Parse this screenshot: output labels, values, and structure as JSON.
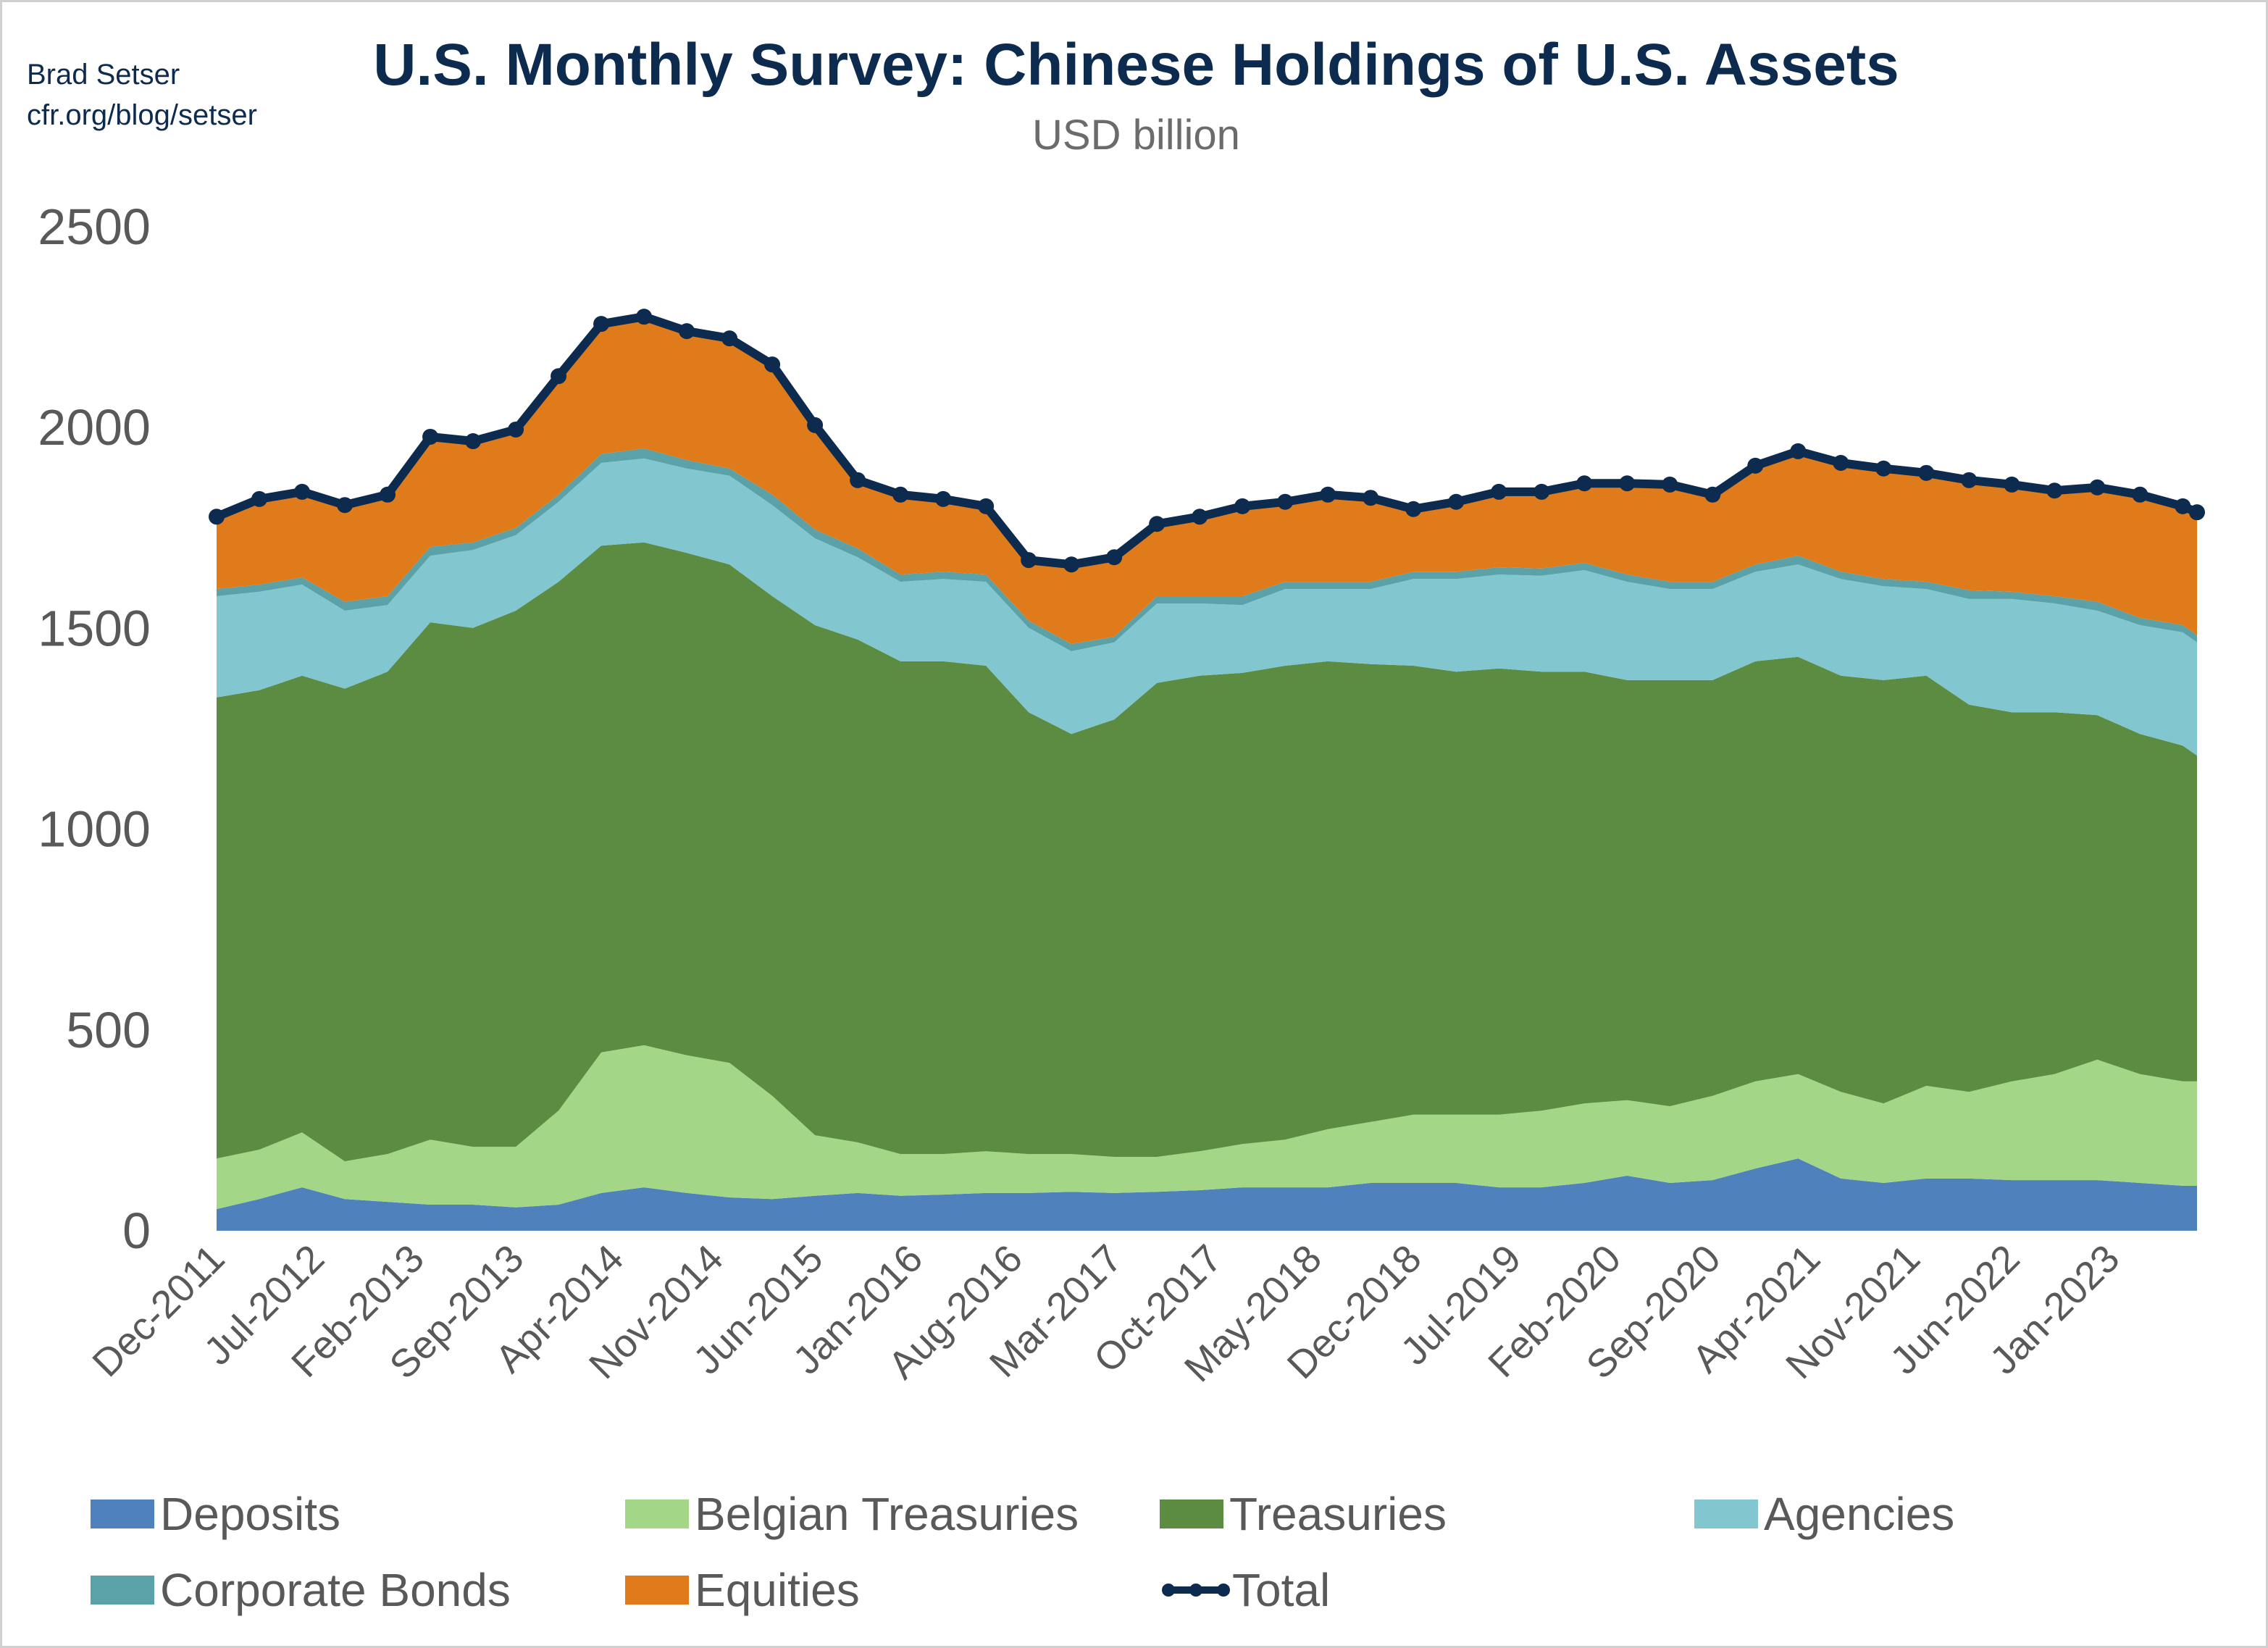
{
  "author": {
    "name": "Brad Setser",
    "site": "cfr.org/blog/setser"
  },
  "chart_data": {
    "type": "area",
    "stacked": true,
    "title": "U.S. Monthly Survey: Chinese Holdings of U.S. Assets",
    "subtitle": "USD billion",
    "xlabel": "",
    "ylabel": "",
    "ylim": [
      0,
      2500
    ],
    "yticks": [
      0,
      500,
      1000,
      1500,
      2000,
      2500
    ],
    "xtick_labels": [
      "Dec-2011",
      "Jul-2012",
      "Feb-2013",
      "Sep-2013",
      "Apr-2014",
      "Nov-2014",
      "Jun-2015",
      "Jan-2016",
      "Aug-2016",
      "Mar-2017",
      "Oct-2017",
      "May-2018",
      "Dec-2018",
      "Jul-2019",
      "Feb-2020",
      "Sep-2020",
      "Apr-2021",
      "Nov-2021",
      "Jun-2022",
      "Jan-2023"
    ],
    "grid": false,
    "legend_position": "bottom",
    "x": [
      "Dec-2011",
      "Mar-2012",
      "Jun-2012",
      "Sep-2012",
      "Dec-2012",
      "Mar-2013",
      "Jun-2013",
      "Sep-2013",
      "Dec-2013",
      "Mar-2014",
      "Jun-2014",
      "Sep-2014",
      "Dec-2014",
      "Mar-2015",
      "Jun-2015",
      "Sep-2015",
      "Dec-2015",
      "Mar-2016",
      "Jun-2016",
      "Sep-2016",
      "Dec-2016",
      "Mar-2017",
      "Jun-2017",
      "Sep-2017",
      "Dec-2017",
      "Mar-2018",
      "Jun-2018",
      "Sep-2018",
      "Dec-2018",
      "Mar-2019",
      "Jun-2019",
      "Sep-2019",
      "Dec-2019",
      "Mar-2020",
      "Jun-2020",
      "Sep-2020",
      "Dec-2020",
      "Mar-2021",
      "Jun-2021",
      "Sep-2021",
      "Dec-2021",
      "Mar-2022",
      "Jun-2022",
      "Sep-2022",
      "Dec-2022",
      "Mar-2023",
      "Jun-2023",
      "Jul-2023"
    ],
    "series": [
      {
        "name": "Deposits",
        "color": "#4f81bd",
        "values": [
          54,
          79,
          108,
          79,
          72,
          65,
          65,
          58,
          65,
          94,
          108,
          94,
          83,
          79,
          87,
          94,
          87,
          90,
          94,
          94,
          97,
          94,
          97,
          101,
          108,
          108,
          108,
          119,
          119,
          119,
          108,
          108,
          119,
          137,
          119,
          126,
          155,
          180,
          130,
          119,
          130,
          130,
          126,
          126,
          126,
          119,
          112,
          112
        ]
      },
      {
        "name": "Belgian Treasuries",
        "color": "#a3d686",
        "values": [
          126,
          123,
          137,
          94,
          119,
          162,
          144,
          151,
          234,
          350,
          354,
          343,
          335,
          257,
          151,
          126,
          104,
          101,
          104,
          97,
          94,
          90,
          87,
          97,
          108,
          119,
          145,
          152,
          170,
          170,
          181,
          191,
          198,
          188,
          191,
          210,
          217,
          210,
          216,
          198,
          231,
          216,
          246,
          264,
          300,
          271,
          260,
          260
        ]
      },
      {
        "name": "Treasuries",
        "color": "#5b8c42",
        "values": [
          1148,
          1144,
          1137,
          1177,
          1201,
          1288,
          1292,
          1335,
          1317,
          1262,
          1252,
          1251,
          1241,
          1244,
          1270,
          1252,
          1227,
          1227,
          1209,
          1100,
          1046,
          1089,
          1180,
          1184,
          1173,
          1180,
          1165,
          1140,
          1118,
          1103,
          1111,
          1093,
          1075,
          1046,
          1061,
          1035,
          1046,
          1039,
          1036,
          1054,
          1021,
          964,
          919,
          901,
          858,
          847,
          836,
          811
        ]
      },
      {
        "name": "Agencies",
        "color": "#82c6cf",
        "values": [
          252,
          245,
          227,
          194,
          166,
          166,
          194,
          188,
          199,
          206,
          209,
          210,
          221,
          227,
          216,
          205,
          198,
          205,
          209,
          210,
          206,
          192,
          198,
          180,
          169,
          191,
          180,
          187,
          216,
          231,
          234,
          239,
          253,
          245,
          227,
          227,
          223,
          230,
          241,
          234,
          216,
          263,
          282,
          271,
          260,
          271,
          282,
          282
        ]
      },
      {
        "name": "Corporate Bonds",
        "color": "#5aa2a8",
        "values": [
          18,
          18,
          18,
          22,
          22,
          22,
          19,
          18,
          18,
          22,
          25,
          21,
          18,
          26,
          22,
          22,
          18,
          18,
          18,
          18,
          18,
          14,
          18,
          18,
          22,
          18,
          18,
          18,
          18,
          18,
          18,
          18,
          18,
          18,
          18,
          18,
          18,
          22,
          18,
          18,
          18,
          22,
          18,
          18,
          22,
          18,
          18,
          18
        ]
      },
      {
        "name": "Equities",
        "color": "#df7b1b",
        "values": [
          180,
          213,
          213,
          241,
          253,
          274,
          252,
          245,
          295,
          324,
          328,
          321,
          324,
          324,
          260,
          170,
          199,
          181,
          170,
          151,
          198,
          198,
          180,
          198,
          224,
          199,
          217,
          209,
          156,
          174,
          188,
          191,
          198,
          227,
          242,
          217,
          246,
          260,
          271,
          275,
          271,
          274,
          267,
          263,
          285,
          307,
          296,
          306
        ]
      }
    ],
    "total": {
      "name": "Total",
      "color": "#0d2b4e",
      "values": [
        1778,
        1822,
        1840,
        1807,
        1833,
        1977,
        1966,
        1995,
        2128,
        2258,
        2276,
        2240,
        2222,
        2157,
        2006,
        1869,
        1833,
        1822,
        1804,
        1670,
        1659,
        1677,
        1760,
        1778,
        1804,
        1815,
        1833,
        1825,
        1797,
        1815,
        1840,
        1840,
        1861,
        1861,
        1858,
        1833,
        1905,
        1941,
        1912,
        1898,
        1887,
        1869,
        1858,
        1843,
        1851,
        1833,
        1804,
        1789
      ]
    }
  }
}
